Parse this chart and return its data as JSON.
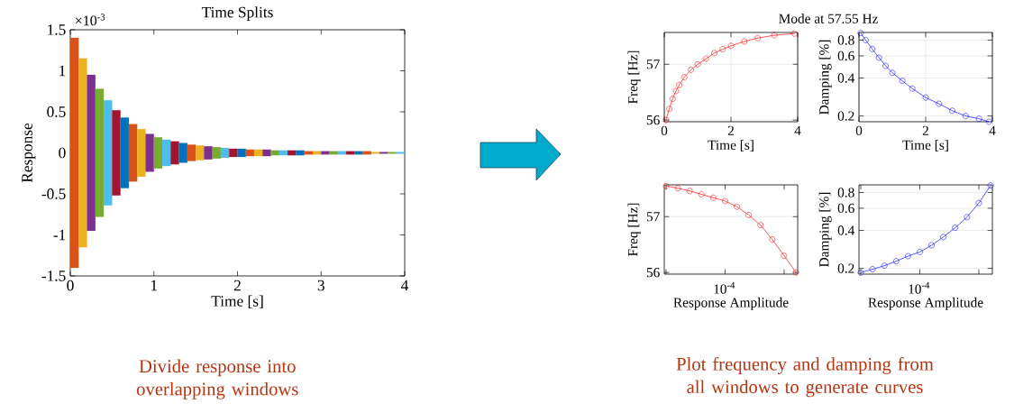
{
  "chart_data": [
    {
      "type": "bar",
      "title": "Time Splits",
      "xlabel": "Time [s]",
      "ylabel": "Response",
      "annotations": [
        "×10$^{-3}$",
        "Divide response into overlapping windows"
      ],
      "x": [
        0.05,
        0.15,
        0.25,
        0.35,
        0.45,
        0.55,
        0.65,
        0.75,
        0.85,
        0.95,
        1.05,
        1.15,
        1.25,
        1.35,
        1.45,
        1.55,
        1.65,
        1.75,
        1.85,
        1.95,
        2.05,
        2.15,
        2.25,
        2.35,
        2.45,
        2.55,
        2.65,
        2.75,
        2.85,
        2.95,
        3.05,
        3.15,
        3.25,
        3.35,
        3.45,
        3.55,
        3.65,
        3.75,
        3.85,
        3.95
      ],
      "base": [
        -1.4,
        -1.15,
        -0.95,
        -0.78,
        -0.64,
        -0.52,
        -0.43,
        -0.35,
        -0.29,
        -0.23,
        -0.19,
        -0.16,
        -0.14,
        -0.12,
        -0.1,
        -0.09,
        -0.08,
        -0.07,
        -0.06,
        -0.05,
        -0.05,
        -0.04,
        -0.04,
        -0.04,
        -0.03,
        -0.03,
        -0.03,
        -0.03,
        -0.02,
        -0.02,
        -0.02,
        -0.02,
        -0.02,
        -0.02,
        -0.02,
        -0.02,
        -0.01,
        -0.01,
        -0.01,
        -0.01
      ],
      "values": [
        2.8,
        2.3,
        1.9,
        1.56,
        1.28,
        1.04,
        0.86,
        0.7,
        0.58,
        0.46,
        0.38,
        0.32,
        0.28,
        0.24,
        0.2,
        0.18,
        0.16,
        0.14,
        0.12,
        0.1,
        0.1,
        0.08,
        0.08,
        0.08,
        0.06,
        0.06,
        0.06,
        0.06,
        0.04,
        0.04,
        0.04,
        0.04,
        0.04,
        0.04,
        0.04,
        0.04,
        0.02,
        0.02,
        0.02,
        0.02
      ],
      "colors": [
        "#d95319",
        "#edb120",
        "#7e2f8e",
        "#77ac30",
        "#4dbeee",
        "#a2142f",
        "#0072bd",
        "#d95319",
        "#edb120",
        "#7e2f8e",
        "#77ac30",
        "#4dbeee",
        "#a2142f",
        "#0072bd",
        "#d95319",
        "#edb120",
        "#7e2f8e",
        "#77ac30",
        "#4dbeee",
        "#a2142f",
        "#0072bd",
        "#d95319",
        "#edb120",
        "#7e2f8e",
        "#77ac30",
        "#4dbeee",
        "#a2142f",
        "#0072bd",
        "#d95319",
        "#edb120",
        "#7e2f8e",
        "#77ac30",
        "#4dbeee",
        "#a2142f",
        "#0072bd",
        "#d95319",
        "#edb120",
        "#7e2f8e",
        "#77ac30",
        "#4dbeee"
      ],
      "xlim": [
        0,
        4
      ],
      "xticks": [
        0,
        1,
        2,
        3,
        4
      ],
      "ylim": [
        -1.5,
        1.5
      ],
      "yticks": [
        -1.5,
        -1,
        -0.5,
        0,
        0.5,
        1,
        1.5
      ],
      "grid": false
    },
    {
      "type": "line",
      "title": "Mode at 57.55 Hz",
      "xlabel": "Time [s]",
      "ylabel": "Freq [Hz]",
      "annotations": [
        "Plot frequency and damping from all windows to generate curves"
      ],
      "x": [
        0.05,
        0.15,
        0.25,
        0.35,
        0.45,
        0.6,
        0.8,
        1.0,
        1.25,
        1.5,
        1.75,
        2.0,
        2.4,
        2.8,
        3.3,
        3.9
      ],
      "values": [
        56.0,
        56.2,
        56.38,
        56.52,
        56.63,
        56.77,
        56.9,
        57.0,
        57.1,
        57.2,
        57.27,
        57.33,
        57.41,
        57.47,
        57.52,
        57.55
      ],
      "color": "#ff0000",
      "marker": "circle",
      "line_style": "solid",
      "xlim": [
        0,
        4
      ],
      "xticks": [
        0,
        2,
        4
      ],
      "ylim": [
        55.97,
        57.57
      ],
      "yticks": [
        56,
        57
      ],
      "grid": true
    },
    {
      "type": "line",
      "xlabel": "Time [s]",
      "ylabel": "Damping [%]",
      "x": [
        0.05,
        0.2,
        0.4,
        0.6,
        0.8,
        1.0,
        1.3,
        1.6,
        2.0,
        2.4,
        2.8,
        3.2,
        3.6,
        3.9
      ],
      "values": [
        0.91,
        0.8,
        0.68,
        0.58,
        0.5,
        0.44,
        0.38,
        0.33,
        0.28,
        0.25,
        0.22,
        0.2,
        0.19,
        0.18
      ],
      "color": "#0000ff",
      "marker": "circle",
      "line_style": "solid",
      "log": "y",
      "xlim": [
        0,
        4
      ],
      "xticks": [
        0,
        2,
        4
      ],
      "ylim": [
        0.18,
        0.92
      ],
      "yticks": [
        0.2,
        0.4,
        0.6,
        0.8
      ],
      "grid": true
    },
    {
      "type": "line",
      "xlabel": "Response Amplitude",
      "ylabel": "Freq [Hz]",
      "annotations": [
        "10$^{-4}$"
      ],
      "categories": [
        null,
        null,
        null,
        null,
        null,
        null,
        null,
        null,
        null,
        null,
        null,
        null
      ],
      "values": [
        57.55,
        57.51,
        57.46,
        57.4,
        57.34,
        57.28,
        57.18,
        57.03,
        56.85,
        56.59,
        56.3,
        56.0
      ],
      "color": "#ff0000",
      "marker": "circle",
      "line_style": "solid",
      "ylim": [
        55.97,
        57.57
      ],
      "yticks": [
        56,
        57
      ],
      "grid": "y"
    },
    {
      "type": "line",
      "xlabel": "Response Amplitude",
      "ylabel": "Damping [%]",
      "annotations": [
        "10$^{-4}$"
      ],
      "categories": [
        null,
        null,
        null,
        null,
        null,
        null,
        null,
        null,
        null,
        null,
        null,
        null
      ],
      "values": [
        0.185,
        0.197,
        0.21,
        0.228,
        0.25,
        0.27,
        0.305,
        0.355,
        0.42,
        0.51,
        0.66,
        0.91
      ],
      "color": "#0000ff",
      "marker": "circle",
      "line_style": "solid",
      "log": "y",
      "ylim": [
        0.18,
        0.92
      ],
      "yticks": [
        0.2,
        0.4,
        0.6,
        0.8
      ],
      "grid": "y"
    }
  ]
}
